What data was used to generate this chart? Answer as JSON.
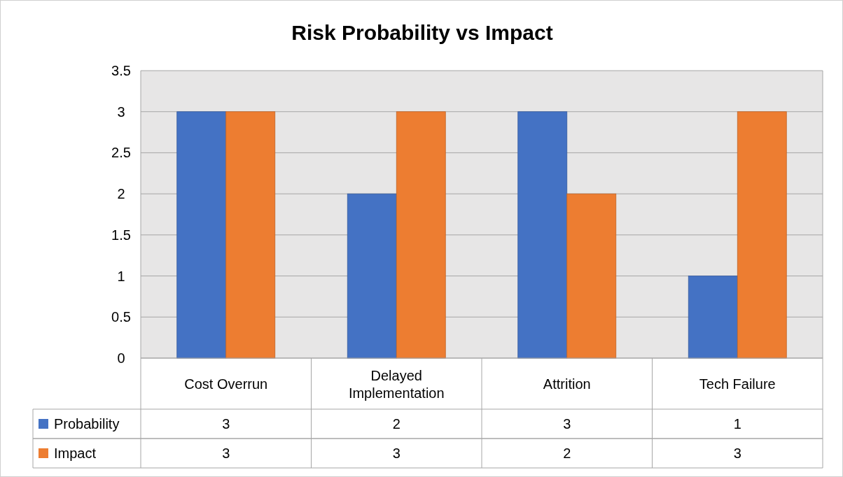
{
  "chart_data": {
    "type": "bar",
    "title": "Risk Probability vs Impact",
    "categories": [
      "Cost Overrun",
      "Delayed Implementation",
      "Attrition",
      "Tech Failure"
    ],
    "series": [
      {
        "name": "Probability",
        "color": "#4472c4",
        "values": [
          3,
          2,
          3,
          1
        ]
      },
      {
        "name": "Impact",
        "color": "#ed7d31",
        "values": [
          3,
          3,
          2,
          3
        ]
      }
    ],
    "ylim": [
      0,
      3.5
    ],
    "yticks": [
      0,
      0.5,
      1,
      1.5,
      2,
      2.5,
      3,
      3.5
    ],
    "grid": "y",
    "data_labels": true,
    "legend": "bottom"
  }
}
